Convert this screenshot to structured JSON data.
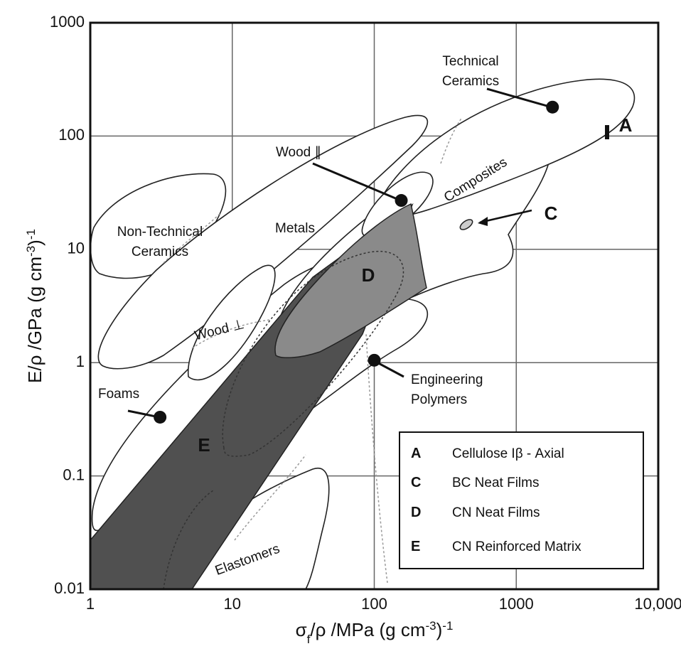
{
  "chart_data": {
    "type": "scatter",
    "x_label": [
      "σ",
      "f",
      "/ρ  /MPa (g cm",
      "-3",
      ")",
      "-1"
    ],
    "y_label": [
      "E/ρ  /GPa (g cm",
      "-3",
      ")",
      "-1"
    ],
    "xscale": "log",
    "yscale": "log",
    "xlim": [
      1,
      10000
    ],
    "ylim": [
      0.01,
      1000
    ],
    "xticks": [
      1,
      10,
      100,
      1000,
      {
        "value": 10000,
        "label": "10,000"
      }
    ],
    "yticks": [
      0.01,
      0.1,
      1,
      10,
      100,
      1000
    ],
    "grid": true,
    "points": {
      "x": [
        1800,
        155,
        100,
        3.1
      ],
      "y": [
        180,
        27,
        1.05,
        0.33
      ],
      "color": "#111111"
    },
    "point_labels": [
      [
        "Technical",
        "Ceramics"
      ],
      [
        "Wood ∥"
      ],
      [
        "Engineering",
        "Polymers"
      ],
      [
        "Foams"
      ]
    ],
    "region_labels": [
      [
        "Non-Technical",
        "Ceramics"
      ],
      [
        "Metals"
      ],
      [
        "Composites"
      ],
      [
        "Wood ⊥"
      ],
      [
        "Elastomers"
      ]
    ],
    "markers": [
      "A",
      "C",
      "D",
      "E"
    ],
    "legend": [
      {
        "key": "A",
        "label": "Cellulose Iβ - Axial"
      },
      {
        "key": "C",
        "label": "BC Neat Films"
      },
      {
        "key": "D",
        "label": "CN Neat Films"
      },
      {
        "key": "E",
        "label": "CN Reinforced Matrix"
      }
    ]
  }
}
